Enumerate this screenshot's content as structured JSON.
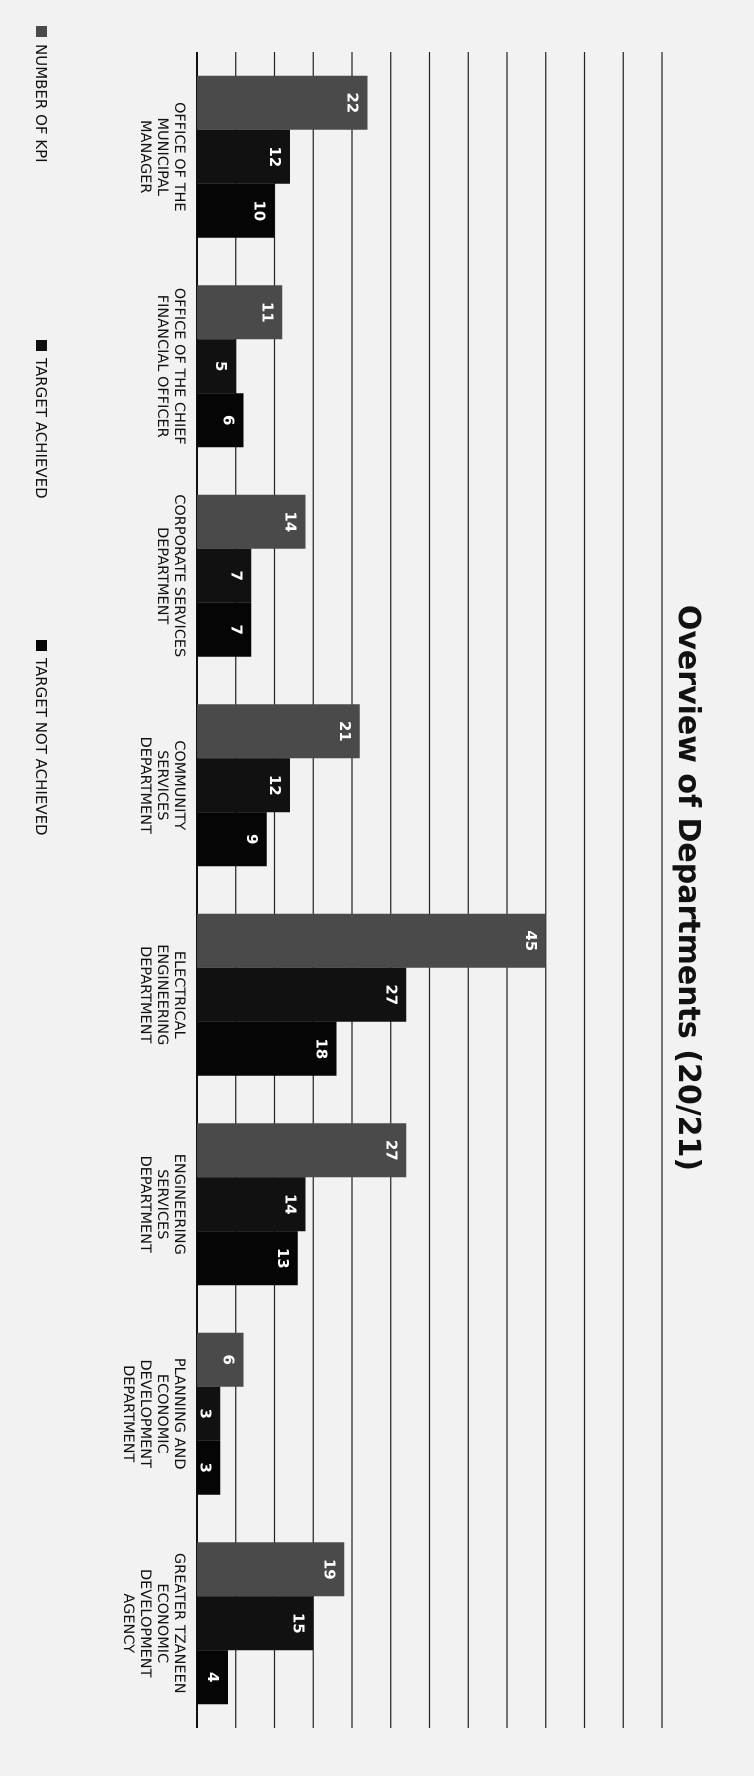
{
  "chart_data": {
    "type": "bar",
    "title": "Overview of Departments (20/21)",
    "categories": [
      "OFFICE OF THE MUNICIPAL MANAGER",
      "OFFICE OF THE CHIEF FINANCIAL OFFICER",
      "CORPORATE SERVICES DEPARTMENT",
      "COMMUNITY SERVICES DEPARTMENT",
      "ELECTRICAL ENGINEERING DEPARTMENT",
      "ENGINEERING SERVICES DEPARTMENT",
      "PLANNING AND ECONOMIC DEVELOPMENT DEPARTMENT",
      "GREATER TZANEEN ECONOMIC DEVELOPMENT AGENCY"
    ],
    "category_lines": [
      [
        "OFFICE OF THE",
        "MUNICIPAL",
        "MANAGER"
      ],
      [
        "OFFICE OF THE CHIEF",
        "FINANCIAL OFFICER"
      ],
      [
        "CORPORATE SERVICES",
        "DEPARTMENT"
      ],
      [
        "COMMUNITY",
        "SERVICES",
        "DEPARTMENT"
      ],
      [
        "ELECTRICAL",
        "ENGINEERING",
        "DEPARTMENT"
      ],
      [
        "ENGINEERING",
        "SERVICES",
        "DEPARTMENT"
      ],
      [
        "PLANNING AND",
        "ECONOMIC",
        "DEVELOPMENT",
        "DEPARTMENT"
      ],
      [
        "GREATER TZANEEN",
        "ECONOMIC",
        "DEVELOPMENT",
        "AGENCY"
      ]
    ],
    "series": [
      {
        "name": "NUMBER OF KPI",
        "values": [
          22,
          11,
          14,
          21,
          45,
          27,
          6,
          19
        ],
        "color": "#4a4a4a"
      },
      {
        "name": "TARGET ACHIEVED",
        "values": [
          12,
          5,
          7,
          12,
          27,
          14,
          3,
          15
        ],
        "color": "#111111"
      },
      {
        "name": "TARGET NOT ACHIEVED",
        "values": [
          10,
          6,
          7,
          9,
          18,
          13,
          3,
          4
        ],
        "color": "#050505"
      }
    ],
    "ylim": [
      0,
      60
    ],
    "gridlines": true,
    "data_labels": true,
    "legend_position": "bottom",
    "orientation": "rotated 90° clockwise"
  }
}
